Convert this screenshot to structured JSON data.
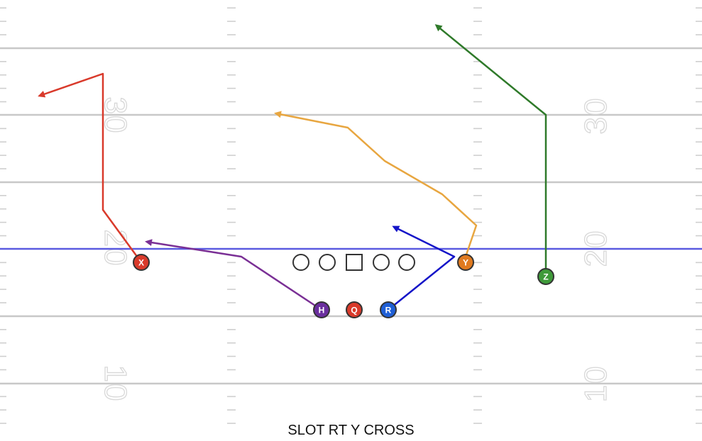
{
  "play_name": "SLOT RT Y CROSS",
  "yard_numbers": {
    "left": [
      "30",
      "20",
      "10"
    ],
    "right": [
      "30",
      "20",
      "10"
    ]
  },
  "colors": {
    "line_of_scrimmage": "#5a5ae0",
    "yard_line": "#c8c8c8",
    "hash_mark": "#cfcfcf",
    "X": "#d93a2b",
    "H": "#6a2e9e",
    "Q": "#d93a2b",
    "R": "#1f5fd6",
    "Y": "#e07a1f",
    "Z": "#3f9a3a",
    "route_X": "#d93a2b",
    "route_H": "#7a2f95",
    "route_R": "#1414c8",
    "route_Y": "#e8a640",
    "route_Z": "#2f7a2a"
  },
  "players": [
    {
      "id": "X",
      "label": "X",
      "role": "receiver"
    },
    {
      "id": "H",
      "label": "H",
      "role": "back"
    },
    {
      "id": "Q",
      "label": "Q",
      "role": "quarterback"
    },
    {
      "id": "R",
      "label": "R",
      "role": "back"
    },
    {
      "id": "Y",
      "label": "Y",
      "role": "receiver"
    },
    {
      "id": "Z",
      "label": "Z",
      "role": "receiver"
    }
  ],
  "offensive_line": [
    "tackle",
    "guard",
    "center",
    "guard",
    "tackle"
  ],
  "routes": [
    "X",
    "H",
    "R",
    "Y",
    "Z"
  ]
}
